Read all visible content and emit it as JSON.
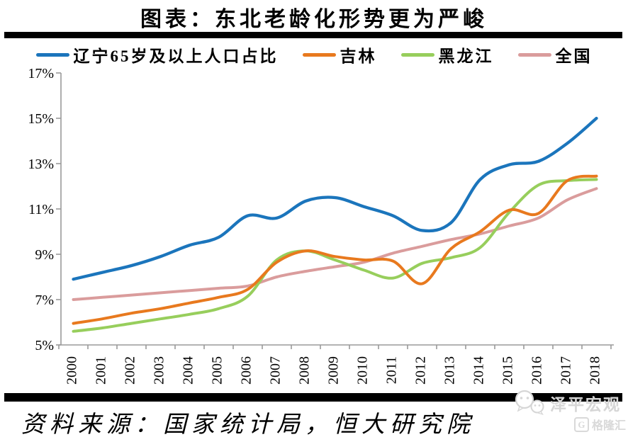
{
  "title": "图表：东北老龄化形势更为严峻",
  "source": "资料来源：国家统计局，恒大研究院",
  "watermark": {
    "brand": "泽平宏观",
    "platform_initial": "G",
    "platform": "格隆汇"
  },
  "chart_data": {
    "type": "line",
    "title": "图表：东北老龄化形势更为严峻",
    "x": [
      "2000",
      "2001",
      "2002",
      "2003",
      "2004",
      "2005",
      "2006",
      "2007",
      "2008",
      "2009",
      "2010",
      "2011",
      "2012",
      "2013",
      "2014",
      "2015",
      "2016",
      "2017",
      "2018"
    ],
    "ylim": [
      5,
      17
    ],
    "y_ticks": [
      "17%",
      "15%",
      "13%",
      "11%",
      "9%",
      "7%",
      "5%"
    ],
    "grid": false,
    "legend_position": "top",
    "axis_color": "#9a9a9a",
    "series": [
      {
        "id": "liaoning",
        "name": "辽宁65岁及以上人口占比",
        "color": "#1B75BC",
        "values": [
          7.9,
          8.2,
          8.5,
          8.9,
          9.4,
          9.75,
          10.7,
          10.6,
          11.35,
          11.5,
          11.1,
          10.7,
          10.05,
          10.4,
          12.3,
          12.95,
          13.1,
          13.9,
          15.0
        ]
      },
      {
        "id": "jilin",
        "name": "吉林",
        "color": "#E8791E",
        "values": [
          5.95,
          6.15,
          6.4,
          6.6,
          6.85,
          7.1,
          7.45,
          8.65,
          9.15,
          8.9,
          8.75,
          8.7,
          7.7,
          9.25,
          10.0,
          10.95,
          10.8,
          12.25,
          12.45
        ]
      },
      {
        "id": "heilongjiang",
        "name": "黑龙江",
        "color": "#97CE5C",
        "values": [
          5.6,
          5.75,
          5.95,
          6.15,
          6.35,
          6.6,
          7.15,
          8.75,
          9.15,
          8.75,
          8.3,
          7.95,
          8.6,
          8.85,
          9.3,
          10.85,
          12.05,
          12.25,
          12.3
        ]
      },
      {
        "id": "quanguo",
        "name": "全国",
        "color": "#DA9C9C",
        "values": [
          7.0,
          7.1,
          7.2,
          7.3,
          7.4,
          7.5,
          7.6,
          8.0,
          8.25,
          8.45,
          8.65,
          9.05,
          9.35,
          9.65,
          9.9,
          10.25,
          10.6,
          11.4,
          11.9
        ]
      }
    ]
  }
}
